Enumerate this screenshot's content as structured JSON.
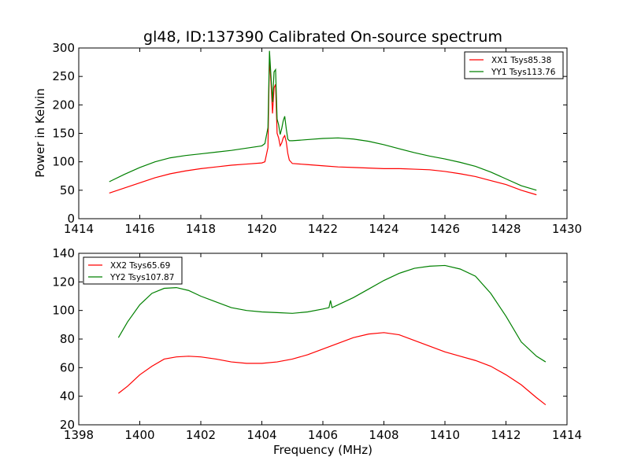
{
  "chart_data": [
    {
      "type": "line",
      "title": "gl48, ID:137390 Calibrated On-source spectrum",
      "xlabel": "",
      "ylabel": "Power in Kelvin",
      "xlim": [
        1414,
        1430
      ],
      "ylim": [
        0,
        300
      ],
      "xticks": [
        "1414",
        "1416",
        "1418",
        "1420",
        "1422",
        "1424",
        "1426",
        "1428",
        "1430"
      ],
      "yticks": [
        "0",
        "50",
        "100",
        "150",
        "200",
        "250",
        "300"
      ],
      "legend_position": "top-right",
      "grid": false,
      "series": [
        {
          "name": "XX1 Tsys85.38",
          "color": "#ff0000",
          "x": [
            1415,
            1415.5,
            1416,
            1416.5,
            1417,
            1417.5,
            1418,
            1418.5,
            1419,
            1419.5,
            1420,
            1420.1,
            1420.2,
            1420.25,
            1420.3,
            1420.35,
            1420.4,
            1420.45,
            1420.5,
            1420.55,
            1420.6,
            1420.65,
            1420.7,
            1420.75,
            1420.8,
            1420.85,
            1420.9,
            1421,
            1421.5,
            1422,
            1422.5,
            1423,
            1423.5,
            1424,
            1424.5,
            1425,
            1425.5,
            1426,
            1426.5,
            1427,
            1427.5,
            1428,
            1428.5,
            1429
          ],
          "values": [
            45,
            54,
            63,
            72,
            79,
            84,
            88,
            91,
            94,
            96,
            98,
            100,
            125,
            282,
            240,
            185,
            230,
            236,
            150,
            142,
            128,
            133,
            142,
            146,
            135,
            115,
            103,
            97,
            95,
            93,
            91,
            90,
            89,
            88,
            88,
            87,
            86,
            83,
            79,
            74,
            67,
            60,
            50,
            42
          ]
        },
        {
          "name": "YY1 Tsys113.76",
          "color": "#008000",
          "x": [
            1415,
            1415.5,
            1416,
            1416.5,
            1417,
            1417.5,
            1418,
            1418.5,
            1419,
            1419.5,
            1420,
            1420.1,
            1420.2,
            1420.25,
            1420.3,
            1420.35,
            1420.4,
            1420.45,
            1420.5,
            1420.55,
            1420.6,
            1420.65,
            1420.7,
            1420.75,
            1420.8,
            1420.85,
            1420.9,
            1421,
            1421.5,
            1422,
            1422.5,
            1423,
            1423.5,
            1424,
            1424.5,
            1425,
            1425.5,
            1426,
            1426.5,
            1427,
            1427.5,
            1428,
            1428.5,
            1429
          ],
          "values": [
            65,
            78,
            90,
            100,
            107,
            111,
            114,
            117,
            120,
            124,
            128,
            132,
            160,
            295,
            250,
            205,
            258,
            262,
            175,
            165,
            148,
            158,
            172,
            180,
            158,
            140,
            137,
            137,
            139,
            141,
            142,
            140,
            136,
            130,
            123,
            116,
            110,
            105,
            99,
            92,
            82,
            70,
            58,
            50
          ]
        }
      ]
    },
    {
      "type": "line",
      "title": "",
      "xlabel": "Frequency (MHz)",
      "ylabel": "",
      "xlim": [
        1398,
        1414
      ],
      "ylim": [
        20,
        140
      ],
      "xticks": [
        "1398",
        "1400",
        "1402",
        "1404",
        "1406",
        "1408",
        "1410",
        "1412",
        "1414"
      ],
      "yticks": [
        "20",
        "40",
        "60",
        "80",
        "100",
        "120",
        "140"
      ],
      "legend_position": "top-left",
      "grid": false,
      "series": [
        {
          "name": "XX2 Tsys65.69",
          "color": "#ff0000",
          "x": [
            1399.3,
            1399.6,
            1400,
            1400.4,
            1400.8,
            1401.2,
            1401.6,
            1402,
            1402.5,
            1403,
            1403.5,
            1404,
            1404.5,
            1405,
            1405.5,
            1406,
            1406.5,
            1407,
            1407.5,
            1408,
            1408.5,
            1409,
            1409.5,
            1410,
            1410.5,
            1411,
            1411.5,
            1412,
            1412.5,
            1413,
            1413.3
          ],
          "values": [
            42,
            47,
            55,
            61,
            66,
            67.5,
            68,
            67.5,
            66,
            64,
            63,
            63,
            64,
            66,
            69,
            73,
            77,
            81,
            83.5,
            84.5,
            83,
            79,
            75,
            71,
            68,
            65,
            61,
            55,
            48,
            39,
            34
          ]
        },
        {
          "name": "YY2 Tsys107.87",
          "color": "#008000",
          "x": [
            1399.3,
            1399.6,
            1400,
            1400.4,
            1400.8,
            1401.2,
            1401.6,
            1402,
            1402.5,
            1403,
            1403.5,
            1404,
            1404.5,
            1405,
            1405.5,
            1406,
            1406.2,
            1406.25,
            1406.3,
            1406.5,
            1407,
            1407.5,
            1408,
            1408.5,
            1409,
            1409.5,
            1410,
            1410.5,
            1411,
            1411.5,
            1412,
            1412.5,
            1413,
            1413.3
          ],
          "values": [
            81,
            92,
            104,
            112,
            115.5,
            116,
            114,
            110,
            106,
            102,
            100,
            99,
            98.5,
            98,
            99,
            101,
            102,
            107,
            102,
            104,
            109,
            115,
            121,
            126,
            129.5,
            131,
            131.5,
            129,
            124,
            112,
            96,
            78,
            68,
            64
          ]
        }
      ]
    }
  ]
}
